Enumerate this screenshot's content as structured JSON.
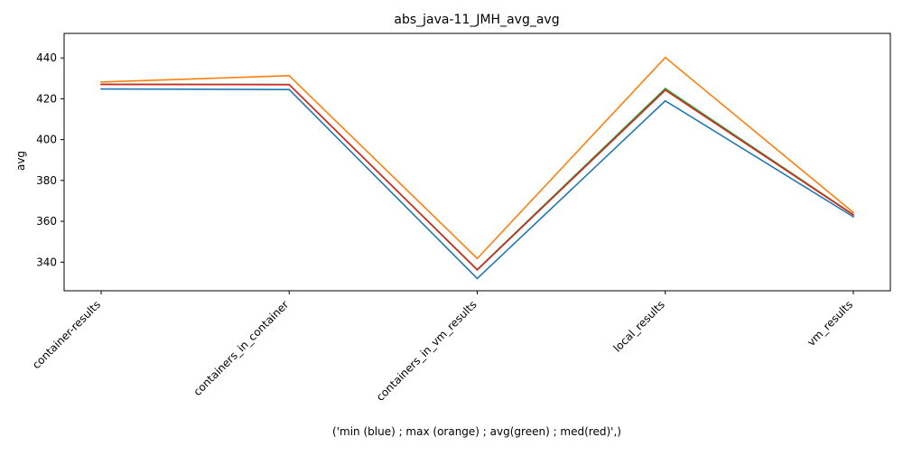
{
  "chart_data": {
    "type": "line",
    "title": "abs_java-11_JMH_avg_avg",
    "xlabel": "('min (blue) ; max (orange) ; avg(green) ; med(red)',)",
    "ylabel": "avg",
    "categories": [
      "container-results",
      "containers_in_container",
      "containers_in_vm_results",
      "local_results",
      "vm_results"
    ],
    "ylim": [
      326,
      452
    ],
    "yticks": [
      340,
      360,
      380,
      400,
      420,
      440
    ],
    "grid": false,
    "series": [
      {
        "values": [
          424.8,
          424.5,
          332.0,
          419.0,
          362.2
        ],
        "color": "#1f77b4"
      },
      {
        "values": [
          428.2,
          431.3,
          341.8,
          440.2,
          364.3
        ],
        "color": "#ff7f0e"
      },
      {
        "values": [
          427.1,
          427.0,
          336.4,
          425.0,
          363.3
        ],
        "color": "#2ca02c"
      },
      {
        "values": [
          427.0,
          426.9,
          336.2,
          424.2,
          363.1
        ],
        "color": "#d62728"
      }
    ]
  }
}
